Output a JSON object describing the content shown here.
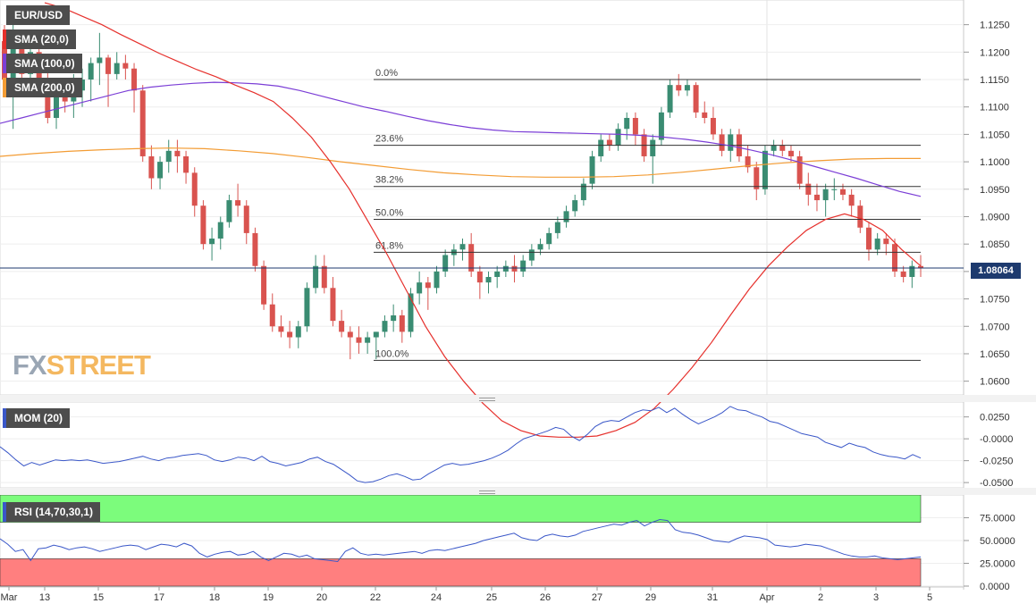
{
  "legend": {
    "symbol": "EUR/USD",
    "sma20": "SMA (20,0)",
    "sma100": "SMA (100,0)",
    "sma200": "SMA (200,0)",
    "mom": "MOM (20)",
    "rsi": "RSI (14,70,30,1)"
  },
  "colors": {
    "bull": "#3a8c72",
    "bear": "#d9534f",
    "sma20": "#e6302c",
    "sma100": "#7b3ed6",
    "sma200": "#f39c34",
    "indicator_line": "#3a57c8",
    "rsi_overbought_zone": "#7cfc7c",
    "rsi_oversold_zone": "#ff7f7f"
  },
  "logo": {
    "part1": "FX",
    "part2": "STREET"
  },
  "current_price": "1.08064",
  "chart_data": [
    {
      "type": "candlestick",
      "title": "EUR/USD",
      "ylim": [
        1.0575,
        1.1295
      ],
      "y_ticks": [
        "1.1250",
        "1.1200",
        "1.1150",
        "1.1100",
        "1.1050",
        "1.1000",
        "1.0950",
        "1.0900",
        "1.0850",
        "1.0800",
        "1.0750",
        "1.0700",
        "1.0650",
        "1.0600"
      ],
      "x_ticks": [
        "Mar",
        "13",
        "15",
        "17",
        "18",
        "19",
        "20",
        "22",
        "24",
        "25",
        "26",
        "27",
        "29",
        "31",
        "Apr",
        "2",
        "3",
        "5"
      ],
      "current_price": 1.08064,
      "candles": [
        [
          1.122,
          1.1265,
          1.113,
          1.115
        ],
        [
          1.115,
          1.125,
          1.106,
          1.123
        ],
        [
          1.123,
          1.124,
          1.114,
          1.116
        ],
        [
          1.116,
          1.123,
          1.115,
          1.12
        ],
        [
          1.12,
          1.121,
          1.114,
          1.115
        ],
        [
          1.115,
          1.119,
          1.107,
          1.108
        ],
        [
          1.108,
          1.113,
          1.106,
          1.112
        ],
        [
          1.112,
          1.115,
          1.109,
          1.111
        ],
        [
          1.111,
          1.116,
          1.108,
          1.113
        ],
        [
          1.113,
          1.117,
          1.11,
          1.115
        ],
        [
          1.115,
          1.119,
          1.111,
          1.118
        ],
        [
          1.118,
          1.1235,
          1.114,
          1.119
        ],
        [
          1.119,
          1.1195,
          1.11,
          1.116
        ],
        [
          1.116,
          1.12,
          1.115,
          1.118
        ],
        [
          1.118,
          1.1195,
          1.115,
          1.117
        ],
        [
          1.117,
          1.118,
          1.109,
          1.113
        ],
        [
          1.113,
          1.114,
          1.1,
          1.101
        ],
        [
          1.101,
          1.103,
          1.095,
          1.097
        ],
        [
          1.097,
          1.101,
          1.095,
          1.1
        ],
        [
          1.1,
          1.104,
          1.098,
          1.102
        ],
        [
          1.102,
          1.104,
          1.098,
          1.101
        ],
        [
          1.101,
          1.102,
          1.096,
          1.098
        ],
        [
          1.098,
          1.099,
          1.09,
          1.092
        ],
        [
          1.092,
          1.093,
          1.084,
          1.085
        ],
        [
          1.085,
          1.088,
          1.082,
          1.086
        ],
        [
          1.086,
          1.09,
          1.084,
          1.089
        ],
        [
          1.089,
          1.094,
          1.088,
          1.093
        ],
        [
          1.093,
          1.096,
          1.09,
          1.092
        ],
        [
          1.092,
          1.093,
          1.085,
          1.087
        ],
        [
          1.087,
          1.088,
          1.08,
          1.081
        ],
        [
          1.081,
          1.082,
          1.073,
          1.074
        ],
        [
          1.074,
          1.076,
          1.069,
          1.07
        ],
        [
          1.07,
          1.072,
          1.068,
          1.069
        ],
        [
          1.069,
          1.071,
          1.066,
          1.068
        ],
        [
          1.068,
          1.071,
          1.066,
          1.07
        ],
        [
          1.07,
          1.078,
          1.069,
          1.077
        ],
        [
          1.077,
          1.083,
          1.076,
          1.081
        ],
        [
          1.081,
          1.083,
          1.076,
          1.077
        ],
        [
          1.077,
          1.079,
          1.07,
          1.071
        ],
        [
          1.071,
          1.073,
          1.068,
          1.069
        ],
        [
          1.069,
          1.07,
          1.064,
          1.068
        ],
        [
          1.068,
          1.07,
          1.065,
          1.067
        ],
        [
          1.067,
          1.069,
          1.065,
          1.068
        ],
        [
          1.068,
          1.069,
          1.064,
          1.069
        ],
        [
          1.069,
          1.072,
          1.068,
          1.071
        ],
        [
          1.071,
          1.074,
          1.069,
          1.072
        ],
        [
          1.072,
          1.073,
          1.067,
          1.069
        ],
        [
          1.069,
          1.077,
          1.068,
          1.076
        ],
        [
          1.076,
          1.08,
          1.074,
          1.078
        ],
        [
          1.078,
          1.079,
          1.073,
          1.077
        ],
        [
          1.077,
          1.081,
          1.076,
          1.08
        ],
        [
          1.08,
          1.084,
          1.079,
          1.083
        ],
        [
          1.083,
          1.085,
          1.081,
          1.084
        ],
        [
          1.084,
          1.086,
          1.082,
          1.085
        ],
        [
          1.085,
          1.087,
          1.079,
          1.08
        ],
        [
          1.08,
          1.081,
          1.075,
          1.078
        ],
        [
          1.078,
          1.08,
          1.076,
          1.079
        ],
        [
          1.079,
          1.081,
          1.077,
          1.08
        ],
        [
          1.08,
          1.082,
          1.079,
          1.081
        ],
        [
          1.081,
          1.083,
          1.078,
          1.08
        ],
        [
          1.08,
          1.083,
          1.079,
          1.082
        ],
        [
          1.082,
          1.085,
          1.081,
          1.084
        ],
        [
          1.084,
          1.086,
          1.083,
          1.085
        ],
        [
          1.085,
          1.088,
          1.084,
          1.087
        ],
        [
          1.087,
          1.09,
          1.086,
          1.089
        ],
        [
          1.089,
          1.092,
          1.088,
          1.091
        ],
        [
          1.091,
          1.094,
          1.09,
          1.093
        ],
        [
          1.093,
          1.097,
          1.092,
          1.096
        ],
        [
          1.096,
          1.102,
          1.095,
          1.101
        ],
        [
          1.101,
          1.105,
          1.1,
          1.104
        ],
        [
          1.104,
          1.105,
          1.102,
          1.103
        ],
        [
          1.103,
          1.107,
          1.102,
          1.106
        ],
        [
          1.106,
          1.109,
          1.104,
          1.108
        ],
        [
          1.108,
          1.109,
          1.103,
          1.105
        ],
        [
          1.105,
          1.106,
          1.1,
          1.101
        ],
        [
          1.101,
          1.105,
          1.096,
          1.104
        ],
        [
          1.104,
          1.11,
          1.103,
          1.109
        ],
        [
          1.109,
          1.115,
          1.108,
          1.114
        ],
        [
          1.114,
          1.116,
          1.112,
          1.113
        ],
        [
          1.113,
          1.115,
          1.112,
          1.114
        ],
        [
          1.114,
          1.1145,
          1.108,
          1.109
        ],
        [
          1.109,
          1.111,
          1.107,
          1.108
        ],
        [
          1.108,
          1.11,
          1.104,
          1.105
        ],
        [
          1.105,
          1.106,
          1.101,
          1.102
        ],
        [
          1.102,
          1.106,
          1.1,
          1.105
        ],
        [
          1.105,
          1.106,
          1.1,
          1.101
        ],
        [
          1.101,
          1.103,
          1.098,
          1.099
        ],
        [
          1.099,
          1.1,
          1.093,
          1.095
        ],
        [
          1.095,
          1.103,
          1.094,
          1.102
        ],
        [
          1.102,
          1.104,
          1.101,
          1.103
        ],
        [
          1.103,
          1.104,
          1.101,
          1.102
        ],
        [
          1.102,
          1.103,
          1.1,
          1.101
        ],
        [
          1.101,
          1.102,
          1.095,
          1.096
        ],
        [
          1.096,
          1.098,
          1.092,
          1.094
        ],
        [
          1.094,
          1.096,
          1.091,
          1.093
        ],
        [
          1.093,
          1.096,
          1.09,
          1.095
        ],
        [
          1.095,
          1.097,
          1.093,
          1.095
        ],
        [
          1.095,
          1.096,
          1.093,
          1.094
        ],
        [
          1.094,
          1.095,
          1.09,
          1.092
        ],
        [
          1.092,
          1.093,
          1.087,
          1.088
        ],
        [
          1.088,
          1.089,
          1.082,
          1.084
        ],
        [
          1.084,
          1.087,
          1.083,
          1.086
        ],
        [
          1.086,
          1.087,
          1.083,
          1.085
        ],
        [
          1.085,
          1.086,
          1.079,
          1.08
        ],
        [
          1.08,
          1.081,
          1.078,
          1.079
        ],
        [
          1.079,
          1.082,
          1.077,
          1.081
        ],
        [
          1.081,
          1.083,
          1.079,
          1.0806
        ]
      ],
      "fibonacci": [
        {
          "label": "0.0%",
          "price": 1.115
        },
        {
          "label": "23.6%",
          "price": 1.103
        },
        {
          "label": "38.2%",
          "price": 1.0955
        },
        {
          "label": "50.0%",
          "price": 1.0895
        },
        {
          "label": "61.8%",
          "price": 1.0835
        },
        {
          "label": "100.0%",
          "price": 1.0638
        }
      ],
      "sma20": [
        1.129,
        1.128,
        1.1265,
        1.125,
        1.1232,
        1.1215,
        1.1198,
        1.1183,
        1.1168,
        1.1155,
        1.114,
        1.1126,
        1.111,
        1.108,
        1.1045,
        1.1,
        1.095,
        1.089,
        1.083,
        1.0765,
        1.07,
        1.0645,
        1.06,
        1.056,
        1.0528,
        1.051,
        1.05,
        1.0498,
        1.0498,
        1.05,
        1.051,
        1.0525,
        1.055,
        1.0585,
        1.0625,
        1.067,
        1.072,
        1.0768,
        1.081,
        1.0845,
        1.0875,
        1.0895,
        1.0905,
        1.0895,
        1.0875,
        1.084,
        1.081
      ],
      "sma100": [
        1.107,
        1.108,
        1.109,
        1.11,
        1.111,
        1.112,
        1.113,
        1.1136,
        1.114,
        1.1143,
        1.1145,
        1.1144,
        1.1142,
        1.1138,
        1.113,
        1.112,
        1.111,
        1.11,
        1.1092,
        1.1083,
        1.1075,
        1.1068,
        1.1062,
        1.1058,
        1.1055,
        1.1054,
        1.1053,
        1.1052,
        1.1051,
        1.105,
        1.1048,
        1.1045,
        1.1041,
        1.1036,
        1.103,
        1.1022,
        1.1013,
        1.1003,
        1.0992,
        1.0981,
        1.097,
        1.0958,
        1.0946,
        1.0937
      ],
      "sma200": [
        1.101,
        1.1015,
        1.1019,
        1.1022,
        1.1024,
        1.1025,
        1.1024,
        1.102,
        1.1015,
        1.1008,
        1.1,
        1.0993,
        1.0986,
        1.098,
        1.0976,
        1.0973,
        1.0972,
        1.0972,
        1.0973,
        1.0976,
        1.0981,
        1.0987,
        1.0993,
        1.0998,
        1.1002,
        1.1005,
        1.1006,
        1.1006
      ]
    },
    {
      "type": "line",
      "title": "MOM (20)",
      "ylim": [
        -0.056,
        0.042
      ],
      "y_ticks": [
        "0.0250",
        "-0.0000",
        "-0.0250",
        "-0.0500"
      ],
      "values": [
        -0.009,
        -0.016,
        -0.024,
        -0.031,
        -0.027,
        -0.03,
        -0.027,
        -0.024,
        -0.025,
        -0.024,
        -0.025,
        -0.024,
        -0.026,
        -0.028,
        -0.027,
        -0.026,
        -0.024,
        -0.022,
        -0.02,
        -0.023,
        -0.025,
        -0.022,
        -0.021,
        -0.019,
        -0.018,
        -0.017,
        -0.019,
        -0.024,
        -0.026,
        -0.024,
        -0.021,
        -0.022,
        -0.025,
        -0.02,
        -0.026,
        -0.028,
        -0.031,
        -0.029,
        -0.027,
        -0.023,
        -0.021,
        -0.026,
        -0.029,
        -0.035,
        -0.041,
        -0.048,
        -0.05,
        -0.049,
        -0.046,
        -0.042,
        -0.04,
        -0.043,
        -0.047,
        -0.046,
        -0.04,
        -0.035,
        -0.03,
        -0.028,
        -0.03,
        -0.029,
        -0.027,
        -0.025,
        -0.022,
        -0.018,
        -0.013,
        -0.006,
        0.0,
        0.003,
        0.006,
        0.009,
        0.013,
        0.011,
        0.003,
        -0.002,
        0.005,
        0.014,
        0.019,
        0.021,
        0.02,
        0.025,
        0.03,
        0.033,
        0.032,
        0.036,
        0.03,
        0.035,
        0.028,
        0.022,
        0.017,
        0.021,
        0.025,
        0.03,
        0.037,
        0.033,
        0.032,
        0.028,
        0.025,
        0.02,
        0.018,
        0.014,
        0.01,
        0.006,
        0.004,
        0.002,
        -0.004,
        -0.007,
        -0.01,
        -0.005,
        -0.008,
        -0.01,
        -0.015,
        -0.018,
        -0.02,
        -0.021,
        -0.023,
        -0.018,
        -0.022
      ],
      "zero_line": 0
    },
    {
      "type": "line",
      "title": "RSI (14,70,30,1)",
      "ylim": [
        0,
        100
      ],
      "y_ticks": [
        "75.0000",
        "50.0000",
        "25.0000",
        "0.0000"
      ],
      "overbought": 70,
      "oversold": 30,
      "values": [
        52,
        46,
        38,
        40,
        28,
        41,
        42,
        45,
        43,
        40,
        42,
        43,
        41,
        38,
        40,
        42,
        44,
        45,
        44,
        40,
        43,
        46,
        45,
        43,
        47,
        44,
        36,
        32,
        35,
        37,
        38,
        34,
        35,
        38,
        32,
        28,
        32,
        36,
        35,
        32,
        34,
        30,
        29,
        28,
        27,
        38,
        42,
        36,
        34,
        35,
        34,
        35,
        36,
        37,
        38,
        36,
        39,
        40,
        39,
        41,
        43,
        45,
        47,
        50,
        52,
        54,
        56,
        58,
        53,
        51,
        50,
        55,
        57,
        55,
        54,
        56,
        60,
        62,
        64,
        66,
        68,
        67,
        70,
        72,
        66,
        70,
        73,
        72,
        62,
        59,
        58,
        56,
        53,
        50,
        49,
        48,
        52,
        55,
        54,
        53,
        51,
        45,
        44,
        43,
        44,
        46,
        45,
        44,
        41,
        38,
        35,
        33,
        32,
        32,
        33,
        31,
        30,
        29,
        30,
        31,
        32
      ]
    }
  ]
}
